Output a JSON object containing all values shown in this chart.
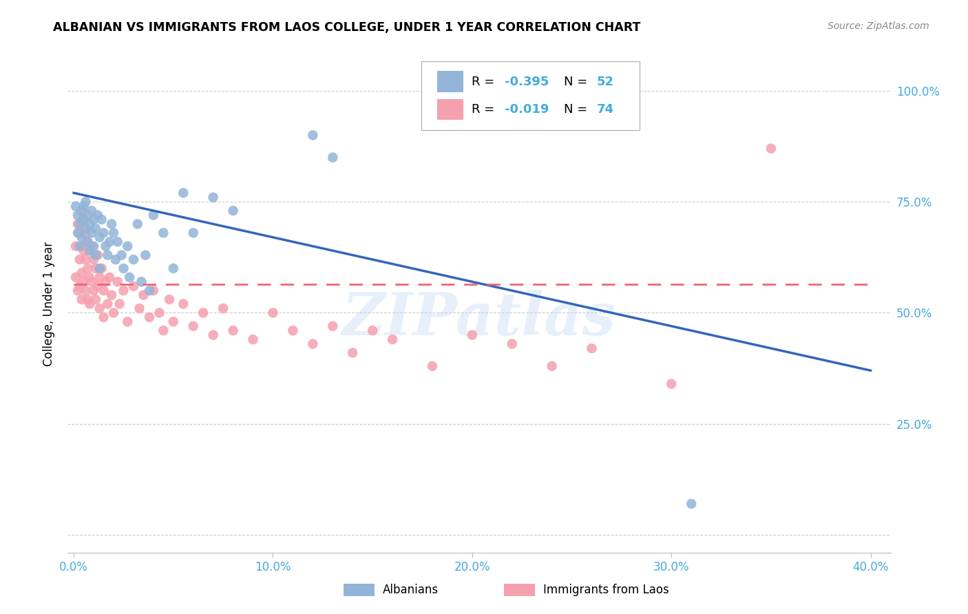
{
  "title": "ALBANIAN VS IMMIGRANTS FROM LAOS COLLEGE, UNDER 1 YEAR CORRELATION CHART",
  "source": "Source: ZipAtlas.com",
  "ylabel": "College, Under 1 year",
  "watermark": "ZIPatlas",
  "blue_color": "#92B4D7",
  "pink_color": "#F5A0AE",
  "line_blue": "#3366BB",
  "line_pink": "#EE6677",
  "tick_color": "#44AADD",
  "grid_color": "#CCCCCC",
  "r_alb": "-0.395",
  "n_alb": "52",
  "r_laos": "-0.019",
  "n_laos": "74",
  "legend_label1": "Albanians",
  "legend_label2": "Immigrants from Laos",
  "xlim_min": -0.003,
  "xlim_max": 0.41,
  "ylim_min": -0.04,
  "ylim_max": 1.08,
  "x_ticks": [
    0.0,
    0.1,
    0.2,
    0.3,
    0.4
  ],
  "y_ticks": [
    0.0,
    0.25,
    0.5,
    0.75,
    1.0
  ],
  "x_tick_labels": [
    "0.0%",
    "10.0%",
    "20.0%",
    "30.0%",
    "40.0%"
  ],
  "y_tick_labels": [
    "",
    "25.0%",
    "50.0%",
    "75.0%",
    "100.0%"
  ],
  "alb_x": [
    0.001,
    0.002,
    0.002,
    0.003,
    0.003,
    0.004,
    0.004,
    0.005,
    0.005,
    0.006,
    0.006,
    0.007,
    0.007,
    0.008,
    0.008,
    0.009,
    0.009,
    0.01,
    0.01,
    0.011,
    0.011,
    0.012,
    0.013,
    0.013,
    0.014,
    0.015,
    0.016,
    0.017,
    0.018,
    0.019,
    0.02,
    0.021,
    0.022,
    0.024,
    0.025,
    0.027,
    0.028,
    0.03,
    0.032,
    0.034,
    0.036,
    0.038,
    0.04,
    0.045,
    0.05,
    0.055,
    0.06,
    0.07,
    0.08,
    0.12,
    0.13,
    0.31
  ],
  "alb_y": [
    0.74,
    0.68,
    0.72,
    0.7,
    0.65,
    0.73,
    0.67,
    0.71,
    0.74,
    0.69,
    0.75,
    0.72,
    0.66,
    0.7,
    0.64,
    0.73,
    0.68,
    0.71,
    0.65,
    0.69,
    0.63,
    0.72,
    0.67,
    0.6,
    0.71,
    0.68,
    0.65,
    0.63,
    0.66,
    0.7,
    0.68,
    0.62,
    0.66,
    0.63,
    0.6,
    0.65,
    0.58,
    0.62,
    0.7,
    0.57,
    0.63,
    0.55,
    0.72,
    0.68,
    0.6,
    0.77,
    0.68,
    0.76,
    0.73,
    0.9,
    0.85,
    0.07
  ],
  "laos_x": [
    0.001,
    0.001,
    0.002,
    0.002,
    0.003,
    0.003,
    0.003,
    0.004,
    0.004,
    0.004,
    0.005,
    0.005,
    0.005,
    0.006,
    0.006,
    0.006,
    0.007,
    0.007,
    0.007,
    0.008,
    0.008,
    0.008,
    0.009,
    0.009,
    0.01,
    0.01,
    0.011,
    0.011,
    0.012,
    0.012,
    0.013,
    0.013,
    0.014,
    0.015,
    0.015,
    0.016,
    0.017,
    0.018,
    0.019,
    0.02,
    0.022,
    0.023,
    0.025,
    0.027,
    0.03,
    0.033,
    0.035,
    0.038,
    0.04,
    0.043,
    0.045,
    0.048,
    0.05,
    0.055,
    0.06,
    0.065,
    0.07,
    0.075,
    0.08,
    0.09,
    0.1,
    0.11,
    0.12,
    0.13,
    0.14,
    0.15,
    0.16,
    0.18,
    0.2,
    0.22,
    0.24,
    0.26,
    0.3,
    0.35
  ],
  "laos_y": [
    0.65,
    0.58,
    0.7,
    0.55,
    0.68,
    0.62,
    0.56,
    0.65,
    0.59,
    0.53,
    0.71,
    0.64,
    0.57,
    0.68,
    0.62,
    0.55,
    0.66,
    0.6,
    0.53,
    0.64,
    0.58,
    0.52,
    0.65,
    0.57,
    0.62,
    0.55,
    0.6,
    0.53,
    0.63,
    0.56,
    0.58,
    0.51,
    0.6,
    0.55,
    0.49,
    0.57,
    0.52,
    0.58,
    0.54,
    0.5,
    0.57,
    0.52,
    0.55,
    0.48,
    0.56,
    0.51,
    0.54,
    0.49,
    0.55,
    0.5,
    0.46,
    0.53,
    0.48,
    0.52,
    0.47,
    0.5,
    0.45,
    0.51,
    0.46,
    0.44,
    0.5,
    0.46,
    0.43,
    0.47,
    0.41,
    0.46,
    0.44,
    0.38,
    0.45,
    0.43,
    0.38,
    0.42,
    0.34,
    0.87
  ]
}
